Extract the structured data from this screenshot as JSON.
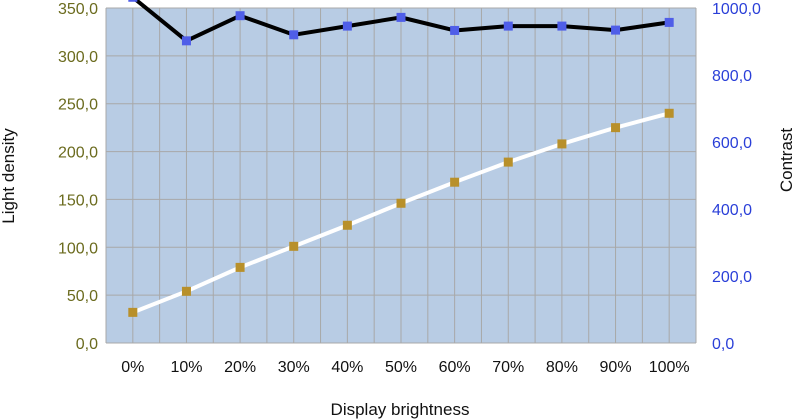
{
  "chart_data": {
    "type": "line",
    "title": "",
    "xlabel": "Display brightness",
    "ylabel": "Light density",
    "y2label": "Contrast",
    "categories": [
      "0%",
      "10%",
      "20%",
      "30%",
      "40%",
      "50%",
      "60%",
      "70%",
      "80%",
      "90%",
      "100%"
    ],
    "ylim": [
      0,
      350
    ],
    "y2lim": [
      0,
      1000
    ],
    "yticks": [
      "0,0",
      "50,0",
      "100,0",
      "150,0",
      "200,0",
      "250,0",
      "300,0",
      "350,0"
    ],
    "y2ticks": [
      "0,0",
      "200,0",
      "400,0",
      "600,0",
      "800,0",
      "1000,0"
    ],
    "grid": true,
    "legend": "none",
    "series": [
      {
        "axis": "right",
        "line_color": "#000000",
        "marker_color": "#4f5ee8",
        "values": [
          1032,
          902,
          977,
          920,
          946,
          972,
          933,
          946,
          946,
          934,
          957
        ]
      },
      {
        "axis": "left",
        "line_color": "#ffffff",
        "marker_color": "#b8902a",
        "values": [
          32,
          54,
          79,
          101,
          123,
          146,
          168,
          189,
          208,
          225,
          240
        ]
      }
    ],
    "colors": {
      "plot_background": "#b8cce4",
      "gridline": "#a8a8a8",
      "left_tick_text": "#6b6b1e",
      "right_tick_text": "#2a3fd8",
      "text": "#111111"
    }
  }
}
